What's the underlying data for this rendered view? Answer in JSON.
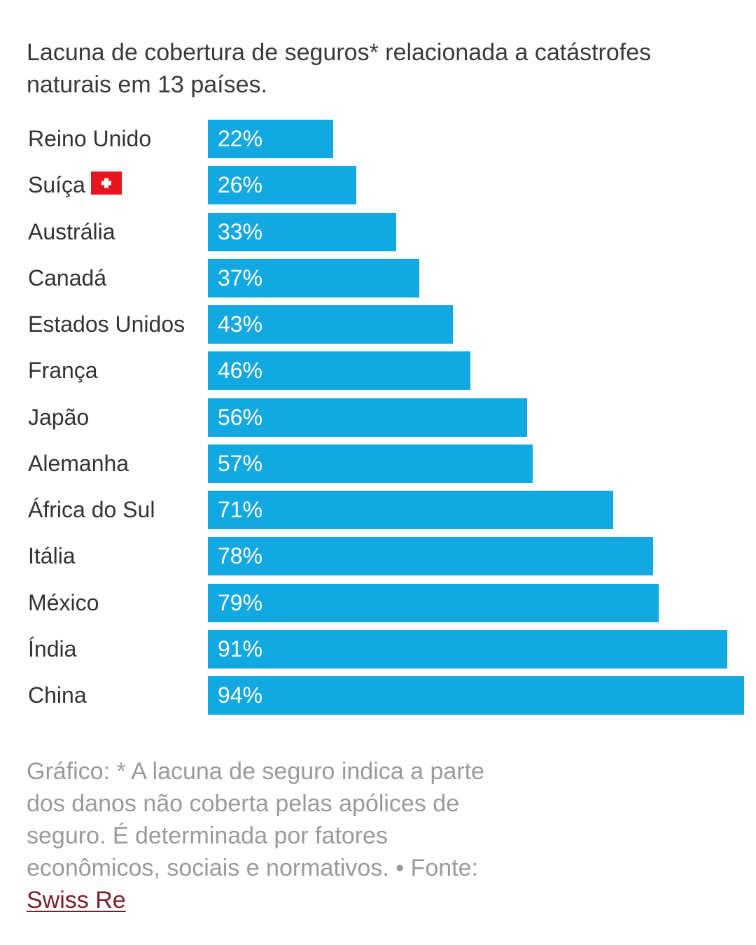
{
  "title": "Lacuna de cobertura de seguros* relacionada a catástrofes naturais em 13 países.",
  "colors": {
    "bar": "#12a8e2",
    "bar_label": "#ffffff",
    "flag_red": "#e8141e",
    "flag_cross": "#ffffff",
    "source_link": "#7a1f2b"
  },
  "chart_data": {
    "type": "bar",
    "orientation": "horizontal",
    "categories": [
      "Reino Unido",
      "Suíça",
      "Austrália",
      "Canadá",
      "Estados Unidos",
      "França",
      "Japão",
      "Alemanha",
      "África do Sul",
      "Itália",
      "México",
      "Índia",
      "China"
    ],
    "values": [
      22,
      26,
      33,
      37,
      43,
      46,
      56,
      57,
      71,
      78,
      79,
      91,
      94
    ],
    "labels": [
      "22%",
      "26%",
      "33%",
      "37%",
      "43%",
      "46%",
      "56%",
      "57%",
      "71%",
      "78%",
      "79%",
      "91%",
      "94%"
    ],
    "unit": "%",
    "title": "Lacuna de cobertura de seguros* relacionada a catástrofes naturais em 13 países.",
    "xlim": [
      0,
      94
    ],
    "grid": false,
    "legend": "none",
    "icons": {
      "Suíça": "swiss-flag-icon"
    }
  },
  "footnote": {
    "text": "Gráfico: * A lacuna de seguro indica a parte dos danos não coberta pelas apólices de seguro. É determinada por fatores econômicos, sociais e normativos. • Fonte: ",
    "source": "Swiss Re"
  }
}
